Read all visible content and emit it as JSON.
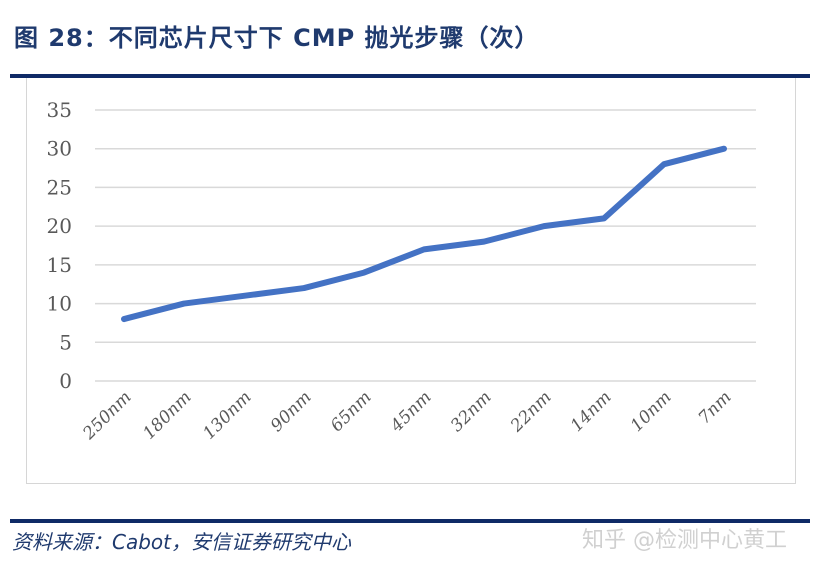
{
  "header": {
    "title": "图 28：不同芯片尺寸下 CMP 抛光步骤（次）"
  },
  "footer": {
    "source": "资料来源：Cabot，安信证券研究中心",
    "watermark": "知乎 @检测中心黄工"
  },
  "colors": {
    "line": "#4472c4",
    "rule": "#0f2a66",
    "title": "#1f3a6e",
    "grid": "#d9d9d9"
  },
  "chart_data": {
    "type": "line",
    "title": "不同芯片尺寸下 CMP 抛光步骤（次）",
    "xlabel": "",
    "ylabel": "",
    "categories": [
      "250nm",
      "180nm",
      "130nm",
      "90nm",
      "65nm",
      "45nm",
      "32nm",
      "22nm",
      "14nm",
      "10nm",
      "7nm"
    ],
    "series": [
      {
        "name": "CMP 抛光步骤",
        "values": [
          8,
          10,
          11,
          12,
          14,
          17,
          18,
          20,
          21,
          28,
          30
        ]
      }
    ],
    "ylim": [
      0,
      35
    ],
    "yticks": [
      0,
      5,
      10,
      15,
      20,
      25,
      30,
      35
    ],
    "grid": true,
    "legend": "none"
  }
}
